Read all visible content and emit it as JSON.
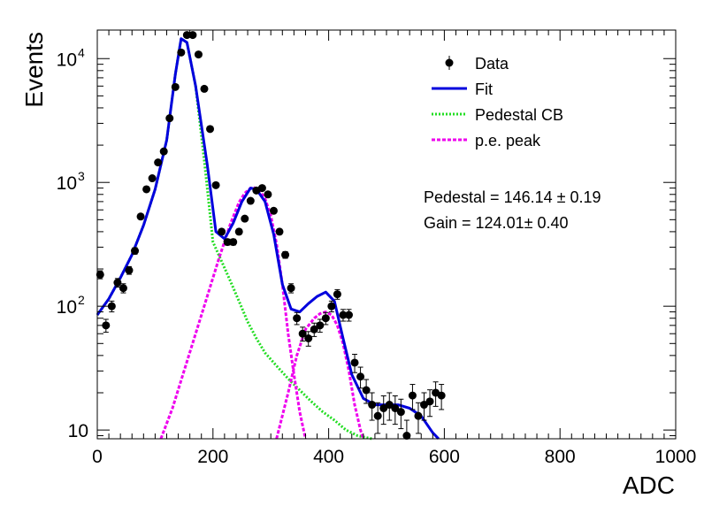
{
  "chart_data": {
    "type": "scatter",
    "xlabel": "ADC",
    "ylabel": "Events",
    "xlim": [
      0,
      1000
    ],
    "ylim": [
      8.5,
      17000
    ],
    "yscale": "log",
    "x_ticks": [
      {
        "value": 0,
        "label": "0"
      },
      {
        "value": 200,
        "label": "200"
      },
      {
        "value": 400,
        "label": "400"
      },
      {
        "value": 600,
        "label": "600"
      },
      {
        "value": 800,
        "label": "800"
      },
      {
        "value": 1000,
        "label": "1000"
      }
    ],
    "y_ticks": [
      {
        "value": 10,
        "base": "10",
        "exp": ""
      },
      {
        "value": 100,
        "base": "10",
        "exp": "2"
      },
      {
        "value": 1000,
        "base": "10",
        "exp": "3"
      },
      {
        "value": 10000,
        "base": "10",
        "exp": "4"
      }
    ],
    "grid": false,
    "legend": {
      "position": "top-right",
      "entries": [
        {
          "label": "Data",
          "style": "marker",
          "color": "#000000"
        },
        {
          "label": "Fit",
          "style": "solid",
          "color": "#0000dd"
        },
        {
          "label": "Pedestal CB",
          "style": "dotted",
          "color": "#22dd22"
        },
        {
          "label": "p.e. peak",
          "style": "dashed",
          "color": "#ee00ee"
        }
      ]
    },
    "annotations": [
      "Pedestal = 146.14 ± 0.19",
      "Gain = 124.01± 0.40"
    ],
    "series": [
      {
        "name": "Data",
        "kind": "points",
        "color": "#000000",
        "x": [
          5,
          15,
          25,
          35,
          45,
          55,
          65,
          75,
          85,
          95,
          105,
          115,
          125,
          135,
          145,
          155,
          165,
          175,
          185,
          195,
          205,
          215,
          225,
          235,
          245,
          255,
          265,
          275,
          285,
          295,
          305,
          315,
          325,
          335,
          345,
          355,
          365,
          375,
          385,
          395,
          405,
          415,
          425,
          435,
          445,
          455,
          465,
          475,
          485,
          495,
          505,
          515,
          525,
          535,
          545,
          555,
          565,
          575,
          585,
          595
        ],
        "y": [
          180,
          70,
          100,
          155,
          140,
          195,
          280,
          530,
          880,
          1080,
          1450,
          1780,
          3300,
          5900,
          11200,
          15500,
          15500,
          10800,
          5700,
          2700,
          950,
          400,
          330,
          330,
          400,
          510,
          710,
          860,
          900,
          800,
          590,
          400,
          260,
          140,
          80,
          60,
          55,
          65,
          70,
          80,
          100,
          125,
          85,
          85,
          35,
          27,
          21,
          16,
          13,
          15,
          16,
          15,
          14,
          9,
          19,
          13,
          16,
          17,
          20,
          19
        ]
      },
      {
        "name": "Fit",
        "kind": "curve",
        "color": "#0000dd",
        "x": [
          0,
          20,
          40,
          60,
          80,
          100,
          120,
          135,
          145,
          155,
          170,
          190,
          205,
          220,
          235,
          250,
          265,
          275,
          290,
          305,
          320,
          335,
          350,
          365,
          380,
          395,
          410,
          425,
          440,
          460,
          480,
          500,
          520,
          540,
          560,
          580,
          590
        ],
        "y": [
          85,
          115,
          170,
          260,
          450,
          880,
          2200,
          7500,
          14500,
          13500,
          6000,
          1400,
          400,
          350,
          470,
          700,
          900,
          880,
          700,
          380,
          150,
          95,
          90,
          105,
          120,
          130,
          110,
          55,
          28,
          18,
          16,
          16,
          16,
          15,
          13,
          9.5,
          8.5
        ]
      },
      {
        "name": "Pedestal CB",
        "kind": "curve",
        "color": "#22dd22",
        "x": [
          0,
          20,
          40,
          60,
          80,
          100,
          120,
          135,
          145,
          155,
          170,
          185,
          200,
          215,
          230,
          245,
          260,
          275,
          290,
          310,
          330,
          350,
          370,
          390,
          410,
          430,
          450,
          475
        ],
        "y": [
          85,
          115,
          170,
          260,
          450,
          880,
          2200,
          7500,
          14500,
          13500,
          6000,
          1500,
          330,
          230,
          160,
          110,
          75,
          55,
          42,
          33,
          26,
          21,
          17,
          14,
          12,
          10,
          9,
          8.5
        ]
      },
      {
        "name": "p.e. peak",
        "kind": "curve",
        "color": "#ee00ee",
        "segments": [
          {
            "x": [
              110,
              130,
              150,
              170,
              190,
              210,
              230,
              245,
              255,
              265,
              270,
              280,
              290,
              300,
              310,
              320,
              330,
              340,
              350,
              360
            ],
            "y": [
              8.5,
              15,
              30,
              60,
              120,
              240,
              460,
              690,
              820,
              900,
              910,
              870,
              740,
              540,
              320,
              150,
              60,
              28,
              14,
              8.5
            ]
          },
          {
            "x": [
              310,
              330,
              345,
              360,
              375,
              385,
              395,
              405,
              415,
              425,
              435,
              445,
              455,
              460
            ],
            "y": [
              8.5,
              20,
              40,
              65,
              80,
              87,
              90,
              85,
              70,
              50,
              30,
              16,
              10,
              8.5
            ]
          }
        ]
      }
    ]
  }
}
